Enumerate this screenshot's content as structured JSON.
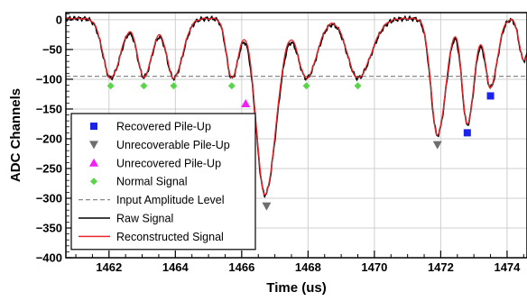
{
  "chart_data": {
    "type": "line",
    "xlabel": "Time (us)",
    "ylabel": "ADC Channels",
    "xlim": [
      1460.7,
      1474.6
    ],
    "ylim": [
      -400,
      12
    ],
    "x_ticks": [
      1462,
      1464,
      1466,
      1468,
      1470,
      1472,
      1474
    ],
    "y_ticks": [
      0,
      -50,
      -100,
      -150,
      -200,
      -250,
      -300,
      -350,
      -400
    ],
    "grid": true,
    "legend_position": "bottom-left",
    "colors": {
      "raw": "#000000",
      "reconstructed": "#e8262b",
      "recovered": "#1a23e8",
      "unrecoverable": "#6e6e6e",
      "unrecovered": "#f21ef2",
      "normal": "#5ad449",
      "threshold": "#888888"
    },
    "threshold_level": -95,
    "legend": [
      {
        "key": "recovered",
        "label": "Recovered Pile-Up",
        "marker": "square"
      },
      {
        "key": "unrecoverable",
        "label": "Unrecoverable Pile-Up",
        "marker": "triangle-down"
      },
      {
        "key": "unrecovered",
        "label": "Unrecovered Pile-Up",
        "marker": "triangle-up"
      },
      {
        "key": "normal",
        "label": "Normal Signal",
        "marker": "diamond"
      },
      {
        "key": "threshold",
        "label": "Input Amplitude Level",
        "marker": "dashed-line"
      },
      {
        "key": "raw",
        "label": "Raw Signal",
        "marker": "line"
      },
      {
        "key": "reconstructed",
        "label": "Reconstructed Signal",
        "marker": "line"
      }
    ],
    "pulses": [
      {
        "t": 1462.05,
        "amp": -100,
        "w": 0.26
      },
      {
        "t": 1463.05,
        "amp": -98,
        "w": 0.22
      },
      {
        "t": 1463.95,
        "amp": -100,
        "w": 0.24
      },
      {
        "t": 1465.7,
        "amp": -100,
        "w": 0.18
      },
      {
        "t": 1466.7,
        "amp": -296,
        "w": 0.3
      },
      {
        "t": 1467.95,
        "amp": -100,
        "w": 0.28
      },
      {
        "t": 1469.5,
        "amp": -100,
        "w": 0.35
      },
      {
        "t": 1471.9,
        "amp": -196,
        "w": 0.22
      },
      {
        "t": 1472.8,
        "amp": -178,
        "w": 0.18
      },
      {
        "t": 1473.5,
        "amp": -115,
        "w": 0.18
      },
      {
        "t": 1474.5,
        "amp": -70,
        "w": 0.15
      }
    ],
    "series": [
      {
        "name": "Recovered Pile-Up",
        "key": "recovered",
        "points": [
          {
            "x": 1472.8,
            "y": -190
          },
          {
            "x": 1473.5,
            "y": -128
          }
        ]
      },
      {
        "name": "Unrecoverable Pile-Up",
        "key": "unrecoverable",
        "points": [
          {
            "x": 1466.75,
            "y": -313
          },
          {
            "x": 1471.9,
            "y": -210
          }
        ]
      },
      {
        "name": "Unrecovered Pile-Up",
        "key": "unrecovered",
        "points": [
          {
            "x": 1466.12,
            "y": -141
          }
        ]
      },
      {
        "name": "Normal Signal",
        "key": "normal",
        "points": [
          {
            "x": 1462.05,
            "y": -111
          },
          {
            "x": 1463.05,
            "y": -111
          },
          {
            "x": 1463.95,
            "y": -111
          },
          {
            "x": 1465.7,
            "y": -111
          },
          {
            "x": 1467.95,
            "y": -111
          },
          {
            "x": 1469.5,
            "y": -111
          }
        ]
      }
    ]
  }
}
